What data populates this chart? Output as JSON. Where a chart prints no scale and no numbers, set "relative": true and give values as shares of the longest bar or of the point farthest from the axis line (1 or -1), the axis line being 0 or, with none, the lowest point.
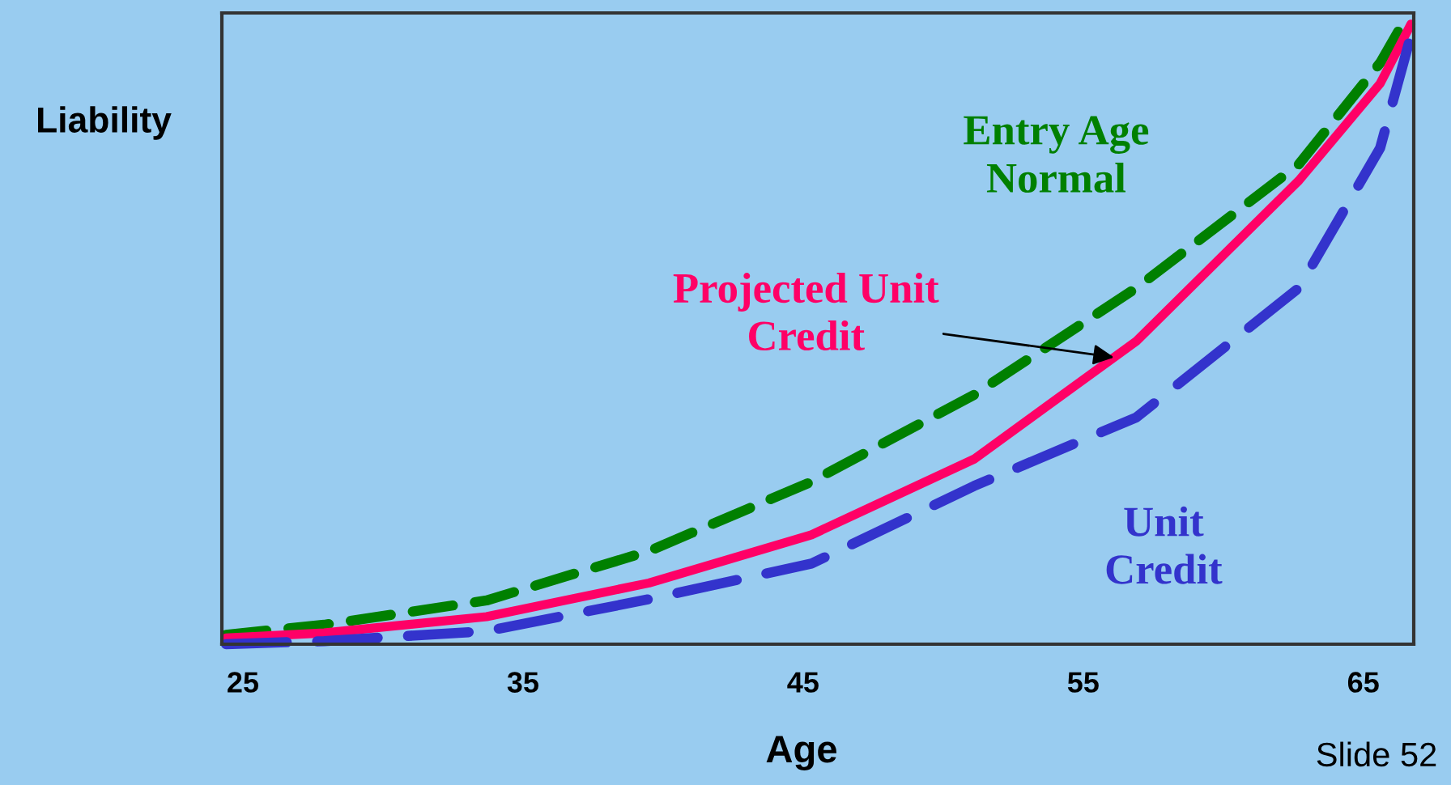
{
  "chart_data": {
    "type": "line",
    "relative": true,
    "xlabel": "Age",
    "ylabel": "Liability",
    "xlim": [
      24.25,
      66.8
    ],
    "xticks": [
      25,
      35,
      45,
      55,
      65
    ],
    "grid": false,
    "legend": false,
    "marker": "none",
    "series": [
      {
        "name": "Entry Age Normal",
        "color": "#008000",
        "line_style": "dashed",
        "x": [
          24.4,
          27.9,
          33.7,
          39.5,
          45.3,
          51.1,
          56.9,
          62.7,
          65.6,
          66.5
        ],
        "values": [
          0.015,
          0.031,
          0.07,
          0.149,
          0.26,
          0.399,
          0.57,
          0.768,
          0.93,
          1.0
        ]
      },
      {
        "name": "Projected Unit Credit",
        "color": "#ff0066",
        "line_style": "solid",
        "x": [
          24.4,
          27.9,
          33.7,
          39.5,
          45.3,
          51.1,
          56.9,
          62.7,
          65.6,
          66.7
        ],
        "values": [
          0.01,
          0.018,
          0.044,
          0.098,
          0.175,
          0.296,
          0.485,
          0.742,
          0.897,
          0.992
        ]
      },
      {
        "name": "Unit Credit",
        "color": "#3333cc",
        "line_style": "dashed",
        "x": [
          24.4,
          27.9,
          33.7,
          39.5,
          45.3,
          51.1,
          56.9,
          62.7,
          65.6,
          66.7
        ],
        "values": [
          0.0,
          0.005,
          0.021,
          0.072,
          0.129,
          0.253,
          0.363,
          0.57,
          0.794,
          0.974
        ]
      }
    ],
    "annotations": [
      "Slide 52"
    ]
  }
}
